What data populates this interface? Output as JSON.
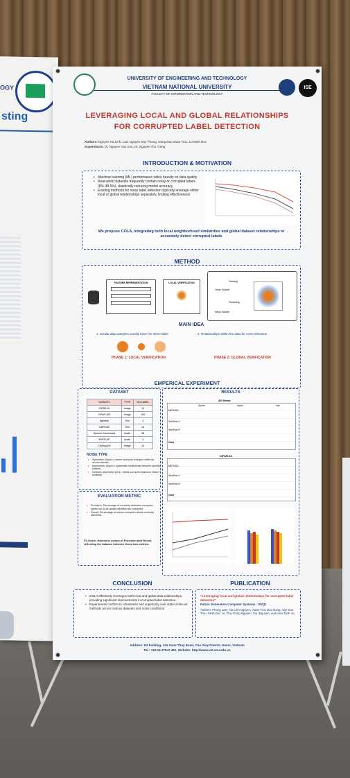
{
  "left_poster": {
    "fragment_top": "OGY",
    "fragment_heading": "sting"
  },
  "poster": {
    "university": "UNIVERSITY OF ENGINEERING AND TECHNOLOGY",
    "national_university": "VIETNAM NATIONAL UNIVERSITY",
    "faculty": "FACULTY OF INFORMATION AND TECHNOLOGY",
    "logo_right_text": "ISE",
    "title_line1": "LEVERAGING LOCAL AND GLOBAL RELATIONSHIPS",
    "title_line2": "FOR CORRUPTED LABEL DETECTION",
    "authors_label": "Authors:",
    "authors": "Nguyen Ha Linh, Lam Nguyen Duy Phong, Dang Dao Xuan Truc, Le Minh Duc",
    "supervisors_label": "Supervisors:",
    "supervisors": "Dr. Nguyen Van Son, Dr. Nguyen Thu Trang",
    "intro": {
      "heading": "INTRODUCTION & MOTIVATION",
      "bullets": [
        "Machine learning (ML) performance relies heavily on data quality",
        "Real-world datasets frequently contain noisy or corrupted labels (8%-38.5%), drastically reducing model accuracy",
        "Existing methods for noisy label detection typically leverage either local or global relationships separately, limiting effectiveness"
      ],
      "proposal": "We propose COLA, integrating both local neighborhood similarities and global dataset relationships to accurately detect corrupted labels"
    },
    "method": {
      "heading": "METHOD",
      "feature_rep": "FEATURE REPRESENTATION",
      "local_verif": "LOCAL VERIFICATION",
      "training": "Training",
      "clean_subset": "Clean Subset",
      "predicting": "Predicting",
      "noisy_subset": "Noisy Subset",
      "main_idea": "MAIN IDEA",
      "idea1": "1. Similar data samples usually have the same label",
      "idea2": "2. Relationships within the data for noise detection",
      "phase1": "PHASE 1: LOCAL VERIFICATION",
      "phase2": "PHASE 2: GLOBAL VERIFICATION"
    },
    "experiment": {
      "heading": "EMPERICAL EXPERIMENT",
      "dataset_heading": "DATASET",
      "dataset_cols": [
        "DATASET",
        "TYPE",
        "NO LABEL"
      ],
      "dataset_rows": [
        [
          "CIFAR-10",
          "Image",
          "10"
        ],
        [
          "CIFAR-100",
          "Image",
          "100"
        ],
        [
          "AgNews",
          "Text",
          "4"
        ],
        [
          "DBPedia",
          "Text",
          "14"
        ],
        [
          "Speech Commands",
          "Audio",
          "35"
        ],
        [
          "EMOCAP",
          "Audio",
          "4"
        ],
        [
          "Clothing1M",
          "Image",
          "14"
        ]
      ],
      "noise_type_heading": "NOISE TYPE",
      "noise_types": [
        "Symmetric (Symm.): labels randomly changed uniformly across classes.",
        "Asymmetric (Asym.): systematic relationship between specific classes.",
        "Instance-dependent (Inst.): labels corrupted based on feature similarity."
      ],
      "results_heading": "RESULTS",
      "table1_title": "AG News",
      "table2_title": "CIFAR-10",
      "method_col": "METHOD",
      "noise_cols": [
        "Symm.",
        "Asym.",
        "Inst."
      ],
      "metric_cols": [
        "Precision",
        "Recall",
        "F1"
      ],
      "rows_t1": [
        "SimiFeat-V",
        "SimiFeat-R",
        "Ours"
      ],
      "rows_t2": [
        "SimiFeat-V",
        "SimiFeat-R",
        "Ours"
      ],
      "eval_heading": "EVALUATION METRIC",
      "eval_items": [
        "Precision: Percentage of correctly detected corrupted labels out of all labels identified as corrupted.",
        "Recall: Percentage of actual corrupted labels correctly identified."
      ],
      "f1": "F1-Score: Harmonic means of Precision and Recall, reflecting the balance between those two metrics."
    },
    "conclusion": {
      "heading": "CONCLUSION",
      "bullets": [
        "COLA effectively leverages both local and global data relationships, providing significant improvements in corrupted label detection.",
        "Experiments confirm its robustness and superiority over state-of-the-art methods across various datasets and noise conditions."
      ]
    },
    "publication": {
      "heading": "PUBLICATION",
      "title": "\"Leveraging local and global relationships for corrupted label detection\"",
      "venue": "Future Generation Computer Systems - ISI/Q1",
      "authors": "Authors: Phong Lam, Ha-Linh Nguyen, Xuan-Truc Dao Dang, Van-Son Tran, Minh-Duc Le, Thu-Trang Nguyen, Son Nguyen, and Hieu Dinh Vo."
    },
    "footer_line1": "Address: E3 building, 144 Xuan Thuy Road, Cau Giay District, Hanoi, Vietnam",
    "footer_line2": "Tel.: +84-24-37547 461. Website: http://www.uet.vnu.edu.vn"
  },
  "colors": {
    "title_red": "#c0392b",
    "navy": "#1f3e7a",
    "accent_orange": "#e67e22",
    "phase_red": "#c0392b"
  }
}
